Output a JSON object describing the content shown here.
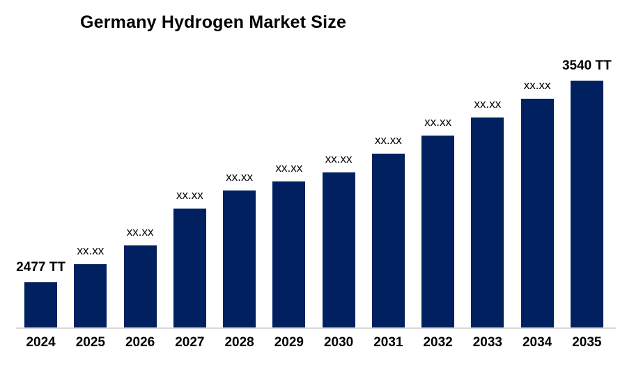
{
  "page": {
    "background_color": "#ffffff"
  },
  "chart_data": {
    "type": "bar",
    "title": "Germany Hydrogen Market Size",
    "unit": "TT",
    "categories": [
      "2024",
      "2025",
      "2026",
      "2027",
      "2028",
      "2029",
      "2030",
      "2031",
      "2032",
      "2033",
      "2034",
      "2035"
    ],
    "series": [
      {
        "name": "Germany Hydrogen Market Size (TT)",
        "values": [
          2477,
          2572,
          2671,
          2865,
          2961,
          3007,
          3056,
          3154,
          3251,
          3346,
          3444,
          3540
        ]
      }
    ],
    "values_note": "Only first and last values are shown in the image (2477 TT, 3540 TT); intermediate values are masked as xx.xx and estimated here from bar heights.",
    "value_labels": [
      "2477 TT",
      "xx.xx",
      "xx.xx",
      "xx.xx",
      "xx.xx",
      "xx.xx",
      "xx.xx",
      "xx.xx",
      "xx.xx",
      "xx.xx",
      "xx.xx",
      "3540 TT"
    ],
    "label_emphasis": [
      true,
      false,
      false,
      false,
      false,
      false,
      false,
      false,
      false,
      false,
      false,
      true
    ],
    "xlabel": "",
    "ylabel": "",
    "value_axis_hidden": true,
    "grid": false,
    "legend_position": "none",
    "bar_color": "#002060",
    "axis_line_color": "#d9d9d9",
    "text_color": "#000000"
  }
}
